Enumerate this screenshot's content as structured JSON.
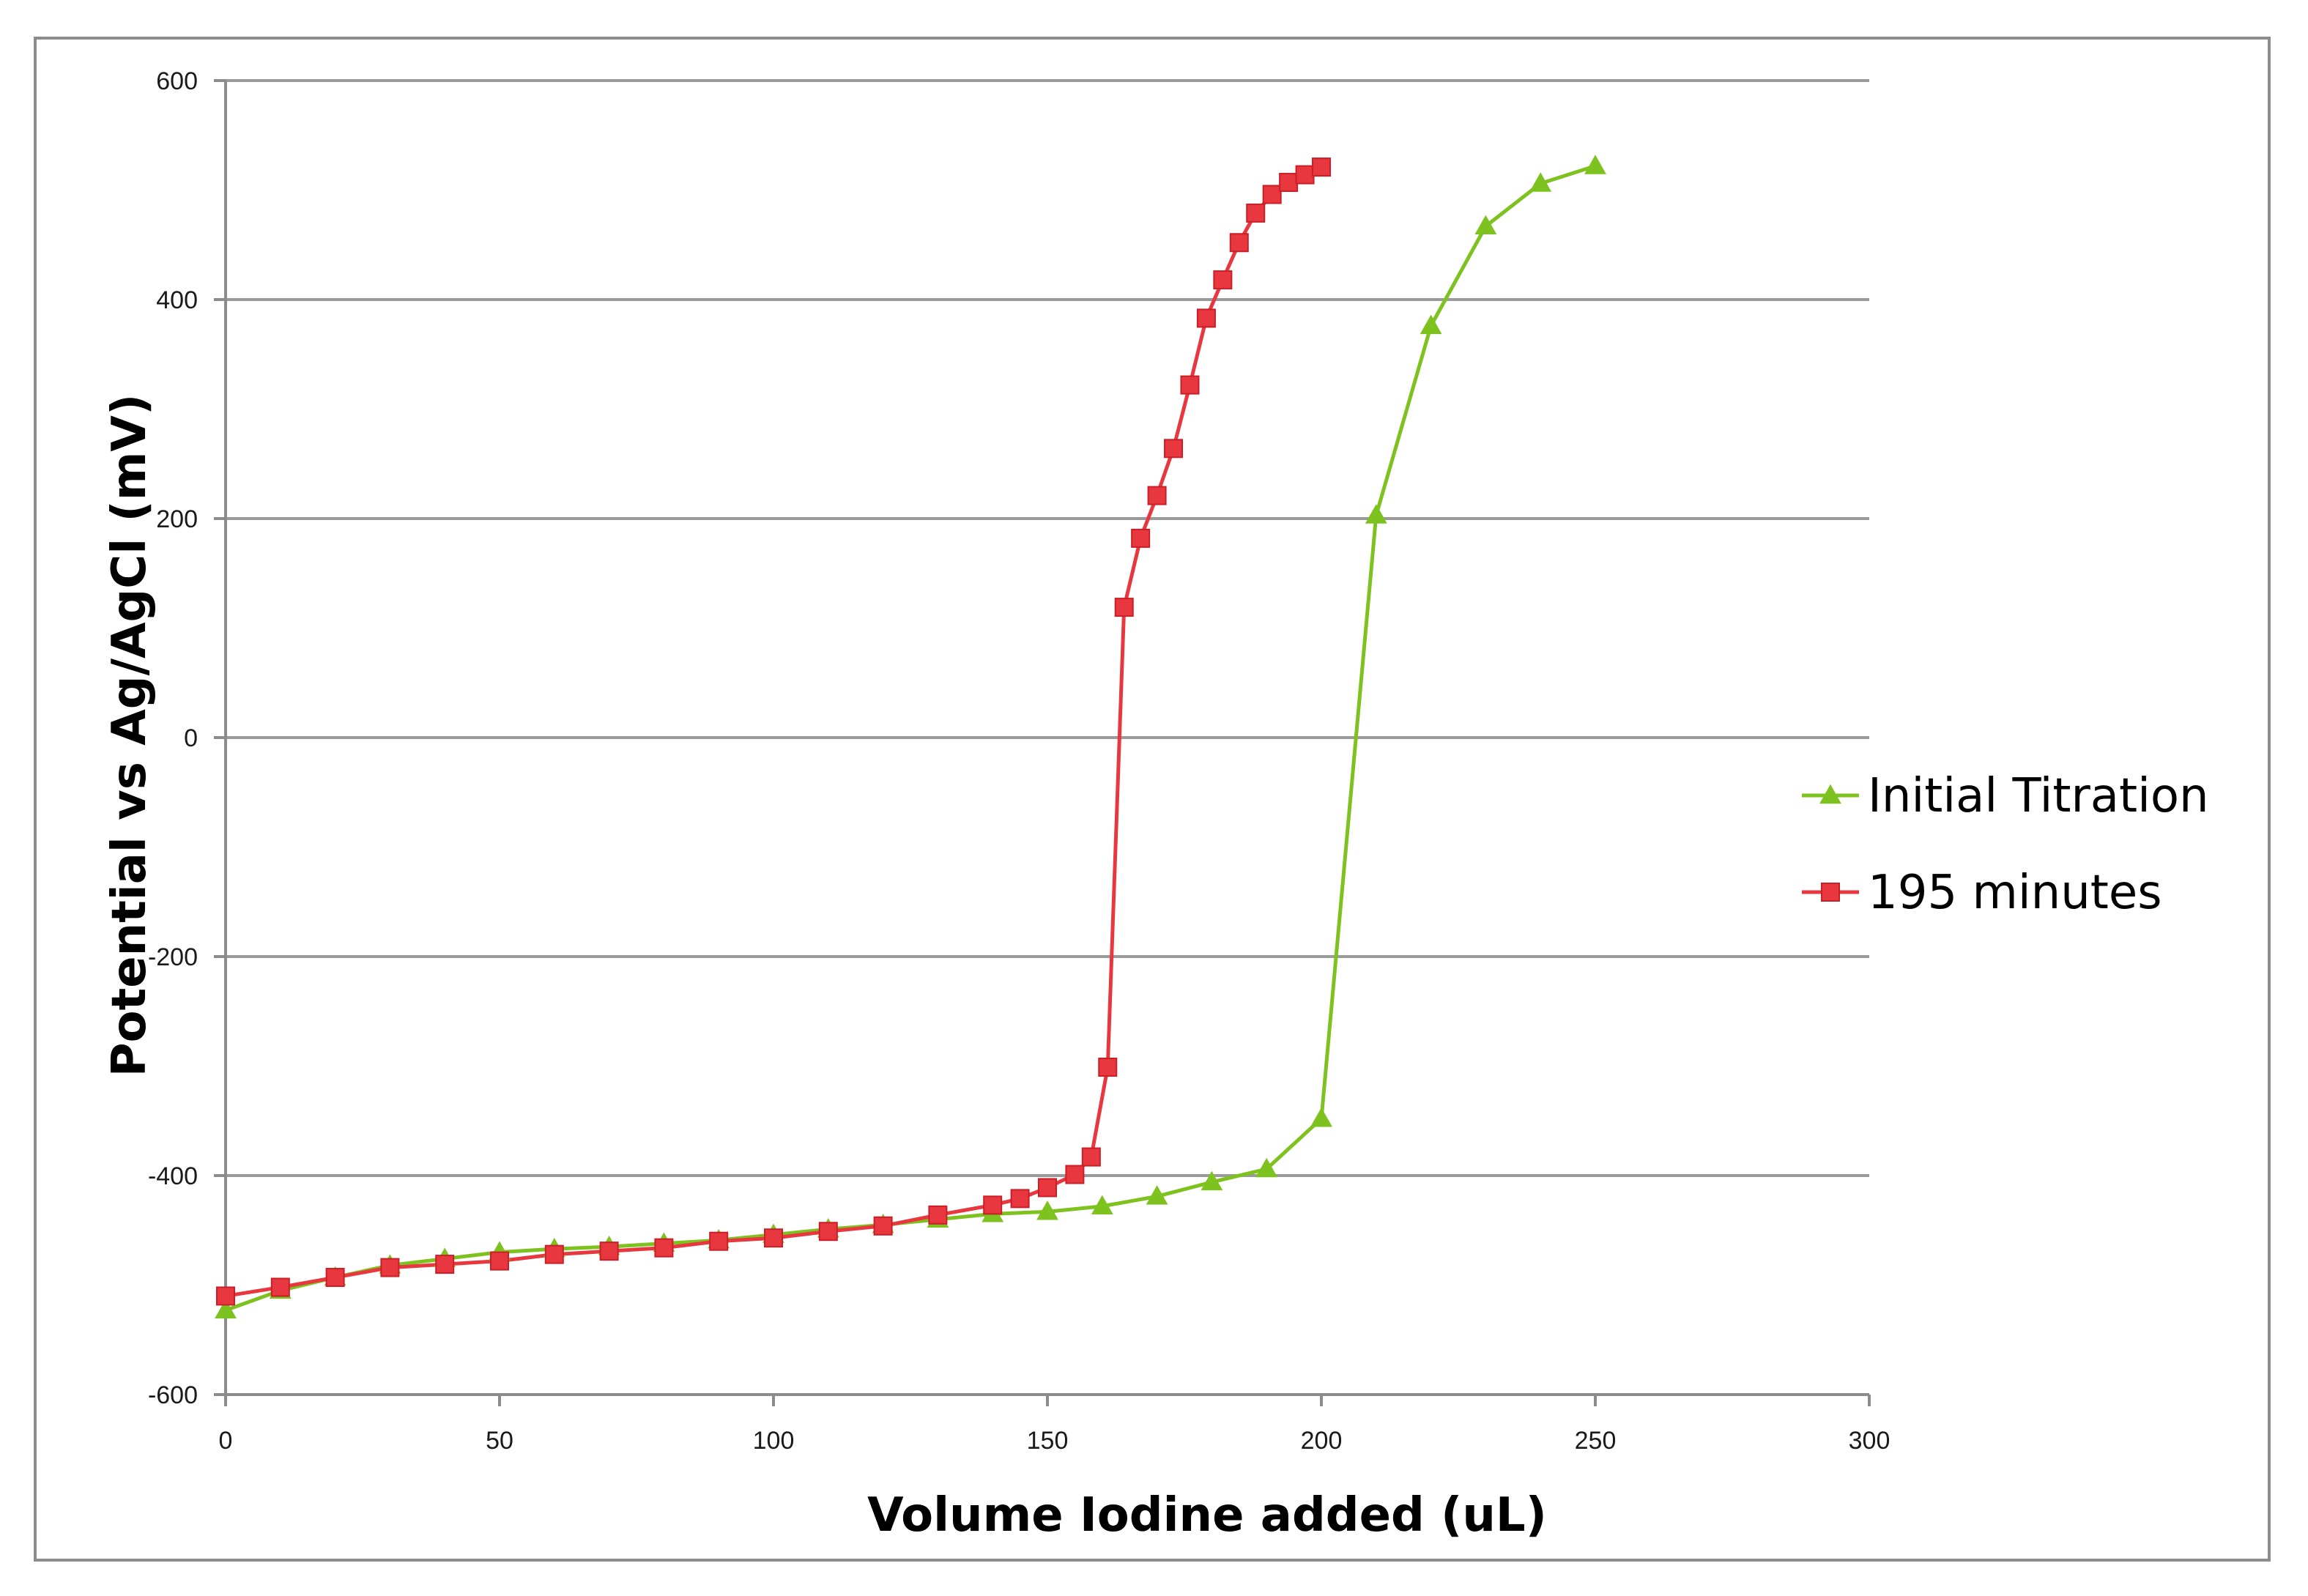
{
  "chart_data": {
    "type": "line",
    "title": "",
    "xlabel": "Volume Iodine added (uL)",
    "ylabel": "Potential vs Ag/AgCl (mV)",
    "xlim": [
      0,
      300
    ],
    "ylim": [
      -600,
      600
    ],
    "x_ticks": [
      0,
      50,
      100,
      150,
      200,
      250,
      300
    ],
    "y_ticks": [
      -600,
      -400,
      -200,
      0,
      200,
      400,
      600
    ],
    "grid": "horizontal",
    "legend_position": "right",
    "series": [
      {
        "name": "Initial Titration",
        "color": "#7dc21e",
        "marker": "triangle",
        "x": [
          0,
          10,
          20,
          30,
          40,
          50,
          60,
          70,
          80,
          90,
          100,
          110,
          120,
          130,
          140,
          150,
          160,
          170,
          180,
          190,
          200,
          210,
          220,
          230,
          240,
          250
        ],
        "y": [
          -523,
          -505,
          -493,
          -482,
          -476,
          -470,
          -467,
          -465,
          -462,
          -459,
          -454,
          -449,
          -445,
          -440,
          -435,
          -433,
          -428,
          -419,
          -406,
          -394,
          -348,
          203,
          376,
          467,
          506,
          522
        ]
      },
      {
        "name": "195 minutes",
        "color": "#e8373f",
        "marker": "square",
        "x": [
          0,
          10,
          20,
          30,
          40,
          50,
          60,
          70,
          80,
          90,
          100,
          110,
          120,
          130,
          140,
          145,
          150,
          155,
          158,
          161,
          164,
          167,
          170,
          173,
          176,
          179,
          182,
          185,
          188,
          191,
          194,
          197,
          200
        ],
        "y": [
          -510,
          -502,
          -493,
          -484,
          -481,
          -478,
          -472,
          -469,
          -466,
          -460,
          -457,
          -451,
          -446,
          -436,
          -427,
          -421,
          -411,
          -399,
          -383,
          -301,
          119,
          182,
          221,
          264,
          322,
          383,
          418,
          452,
          479,
          496,
          507,
          514,
          521
        ]
      }
    ]
  }
}
